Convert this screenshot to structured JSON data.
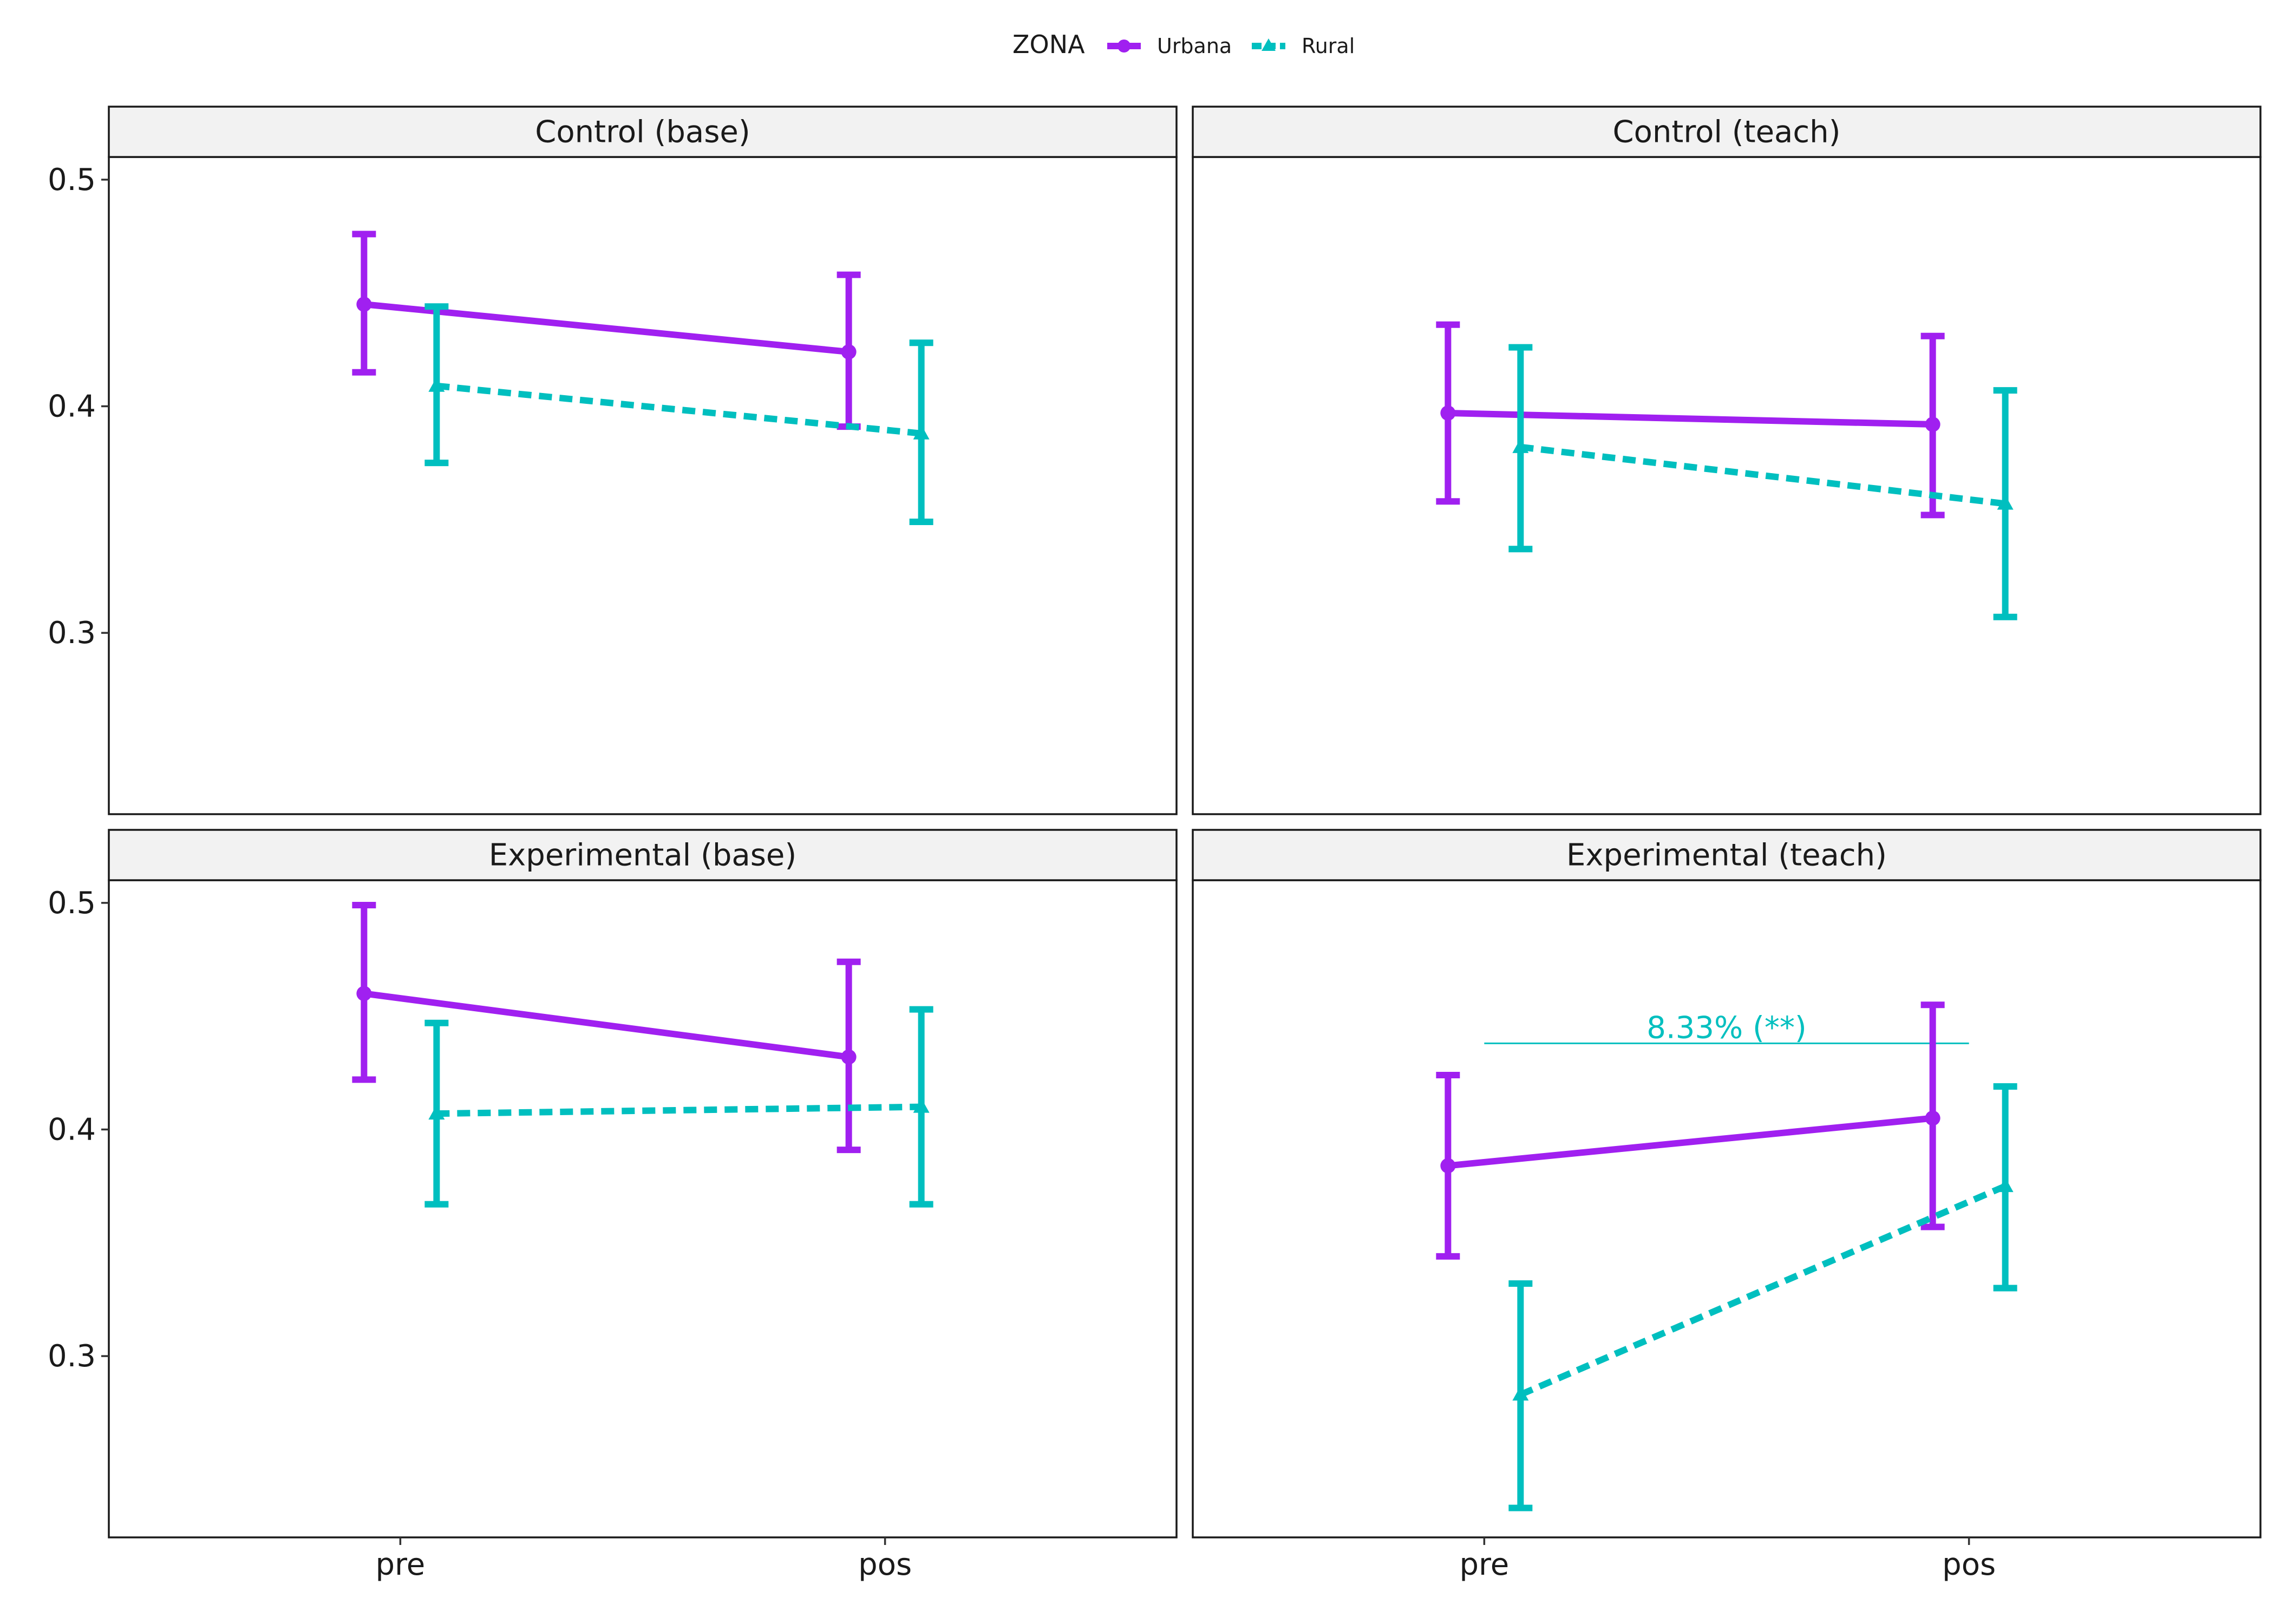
{
  "colors": {
    "urbana": "#A020F0",
    "rural": "#00BFBF",
    "strip_fill": "#F2F2F2",
    "panel_border": "#1A1A1A"
  },
  "legend": {
    "title": "ZONA",
    "entries": [
      {
        "label": "Urbana",
        "color": "#A020F0",
        "linetype": "solid",
        "marker": "circle"
      },
      {
        "label": "Rural",
        "color": "#00BFBF",
        "linetype": "dashed",
        "marker": "triangle"
      }
    ],
    "placement": "top"
  },
  "chart_data": [
    {
      "type": "line",
      "title": "Control (base)",
      "categories": [
        "pre",
        "pos"
      ],
      "ylim": [
        0.22,
        0.51
      ],
      "yticks": [
        "0.3",
        "0.4",
        "0.5"
      ],
      "grid": false,
      "series": [
        {
          "name": "Urbana",
          "values": [
            0.445,
            0.424
          ],
          "lower": [
            0.415,
            0.391
          ],
          "upper": [
            0.476,
            0.458
          ]
        },
        {
          "name": "Rural",
          "values": [
            0.409,
            0.388
          ],
          "lower": [
            0.375,
            0.349
          ],
          "upper": [
            0.444,
            0.428
          ]
        }
      ]
    },
    {
      "type": "line",
      "title": "Control (teach)",
      "categories": [
        "pre",
        "pos"
      ],
      "ylim": [
        0.22,
        0.51
      ],
      "grid": false,
      "series": [
        {
          "name": "Urbana",
          "values": [
            0.397,
            0.392
          ],
          "lower": [
            0.358,
            0.352
          ],
          "upper": [
            0.436,
            0.431
          ]
        },
        {
          "name": "Rural",
          "values": [
            0.382,
            0.357
          ],
          "lower": [
            0.337,
            0.307
          ],
          "upper": [
            0.426,
            0.407
          ]
        }
      ]
    },
    {
      "type": "line",
      "title": "Experimental (base)",
      "categories": [
        "pre",
        "pos"
      ],
      "ylim": [
        0.22,
        0.51
      ],
      "yticks": [
        "0.3",
        "0.4",
        "0.5"
      ],
      "grid": false,
      "series": [
        {
          "name": "Urbana",
          "values": [
            0.46,
            0.432
          ],
          "lower": [
            0.422,
            0.391
          ],
          "upper": [
            0.499,
            0.474
          ]
        },
        {
          "name": "Rural",
          "values": [
            0.407,
            0.41
          ],
          "lower": [
            0.367,
            0.367
          ],
          "upper": [
            0.447,
            0.453
          ]
        }
      ]
    },
    {
      "type": "line",
      "title": "Experimental (teach)",
      "categories": [
        "pre",
        "pos"
      ],
      "ylim": [
        0.22,
        0.51
      ],
      "grid": false,
      "series": [
        {
          "name": "Urbana",
          "values": [
            0.384,
            0.405
          ],
          "lower": [
            0.344,
            0.357
          ],
          "upper": [
            0.424,
            0.455
          ]
        },
        {
          "name": "Rural",
          "values": [
            0.283,
            0.375
          ],
          "lower": [
            0.233,
            0.33
          ],
          "upper": [
            0.332,
            0.419
          ]
        }
      ],
      "annotations": [
        {
          "text": "8.33% (**)",
          "from": "pre",
          "to": "pos",
          "y": 0.438,
          "color": "#00BFBF"
        }
      ]
    }
  ]
}
